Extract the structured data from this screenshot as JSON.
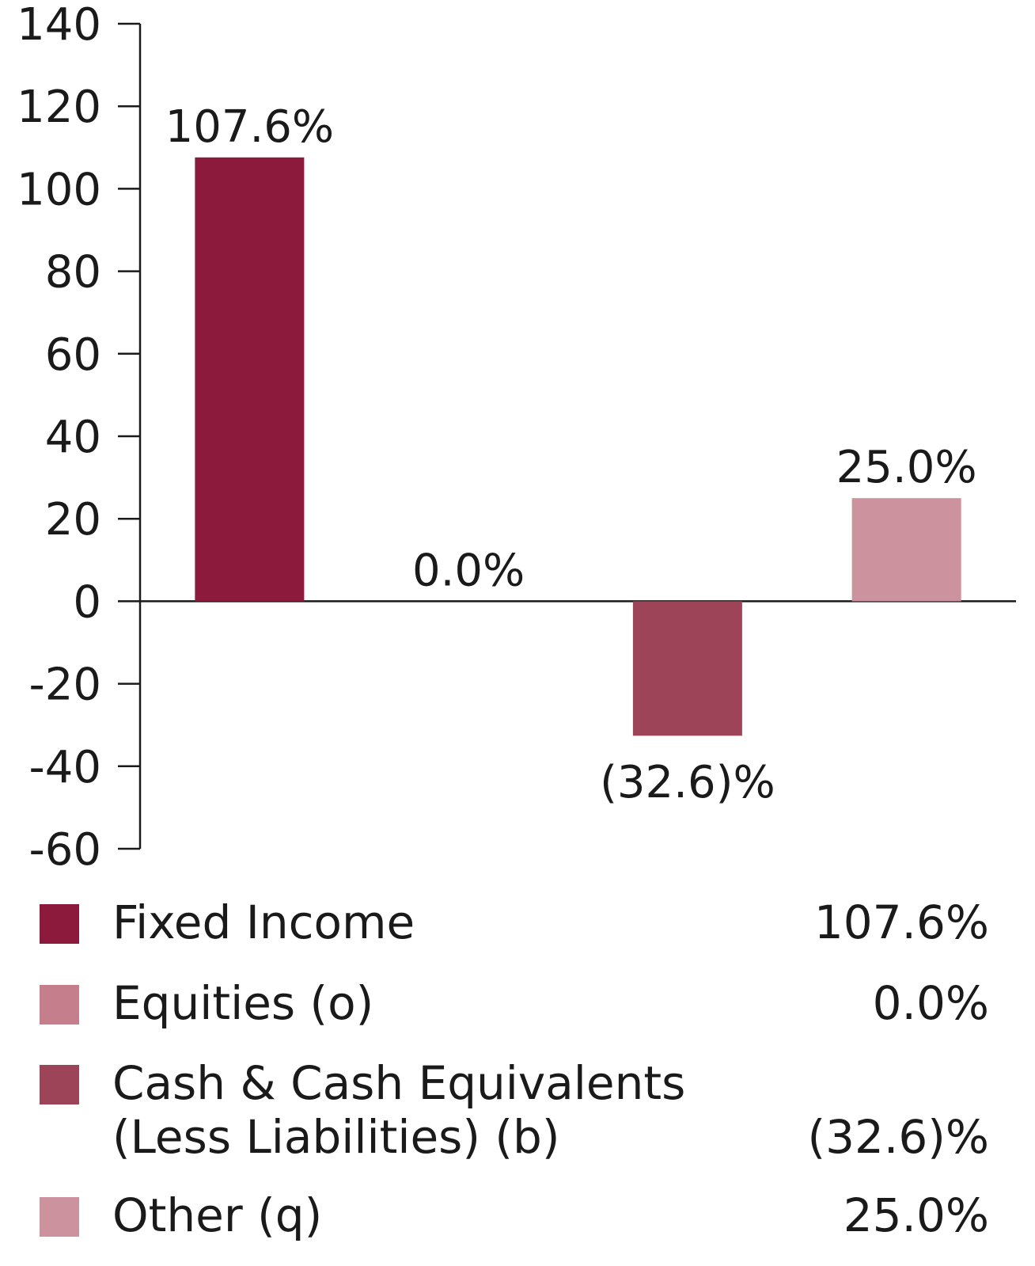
{
  "chart_data": {
    "type": "bar",
    "categories": [
      "Fixed Income",
      "Equities (o)",
      "Cash & Cash Equivalents (Less Liabilities) (b)",
      "Other (q)"
    ],
    "values": [
      107.6,
      0.0,
      -32.6,
      25.0
    ],
    "data_labels": [
      "107.6%",
      "0.0%",
      "(32.6)%",
      "25.0%"
    ],
    "colors": [
      "#8b1a3c",
      "#c47e8c",
      "#9e4459",
      "#cc939e"
    ],
    "ylim": [
      -60,
      140
    ],
    "yticks": [
      140,
      120,
      100,
      80,
      60,
      40,
      20,
      0,
      -20,
      -40,
      -60
    ],
    "ytick_labels": [
      "140",
      "120",
      "100",
      "80",
      "60",
      "40",
      "20",
      "0",
      "-20",
      "-40",
      "-60"
    ],
    "grid": false,
    "legend_placement": "bottom"
  },
  "legend": {
    "items": [
      {
        "name_lines": [
          "Fixed Income"
        ],
        "value": "107.6%",
        "color": "#8b1a3c"
      },
      {
        "name_lines": [
          "Equities (o)"
        ],
        "value": "0.0%",
        "color": "#c47e8c"
      },
      {
        "name_lines": [
          "Cash & Cash Equivalents",
          "(Less Liabilities) (b)"
        ],
        "value": "(32.6)%",
        "color": "#9e4459"
      },
      {
        "name_lines": [
          "Other (q)"
        ],
        "value": "25.0%",
        "color": "#cc939e"
      }
    ]
  }
}
